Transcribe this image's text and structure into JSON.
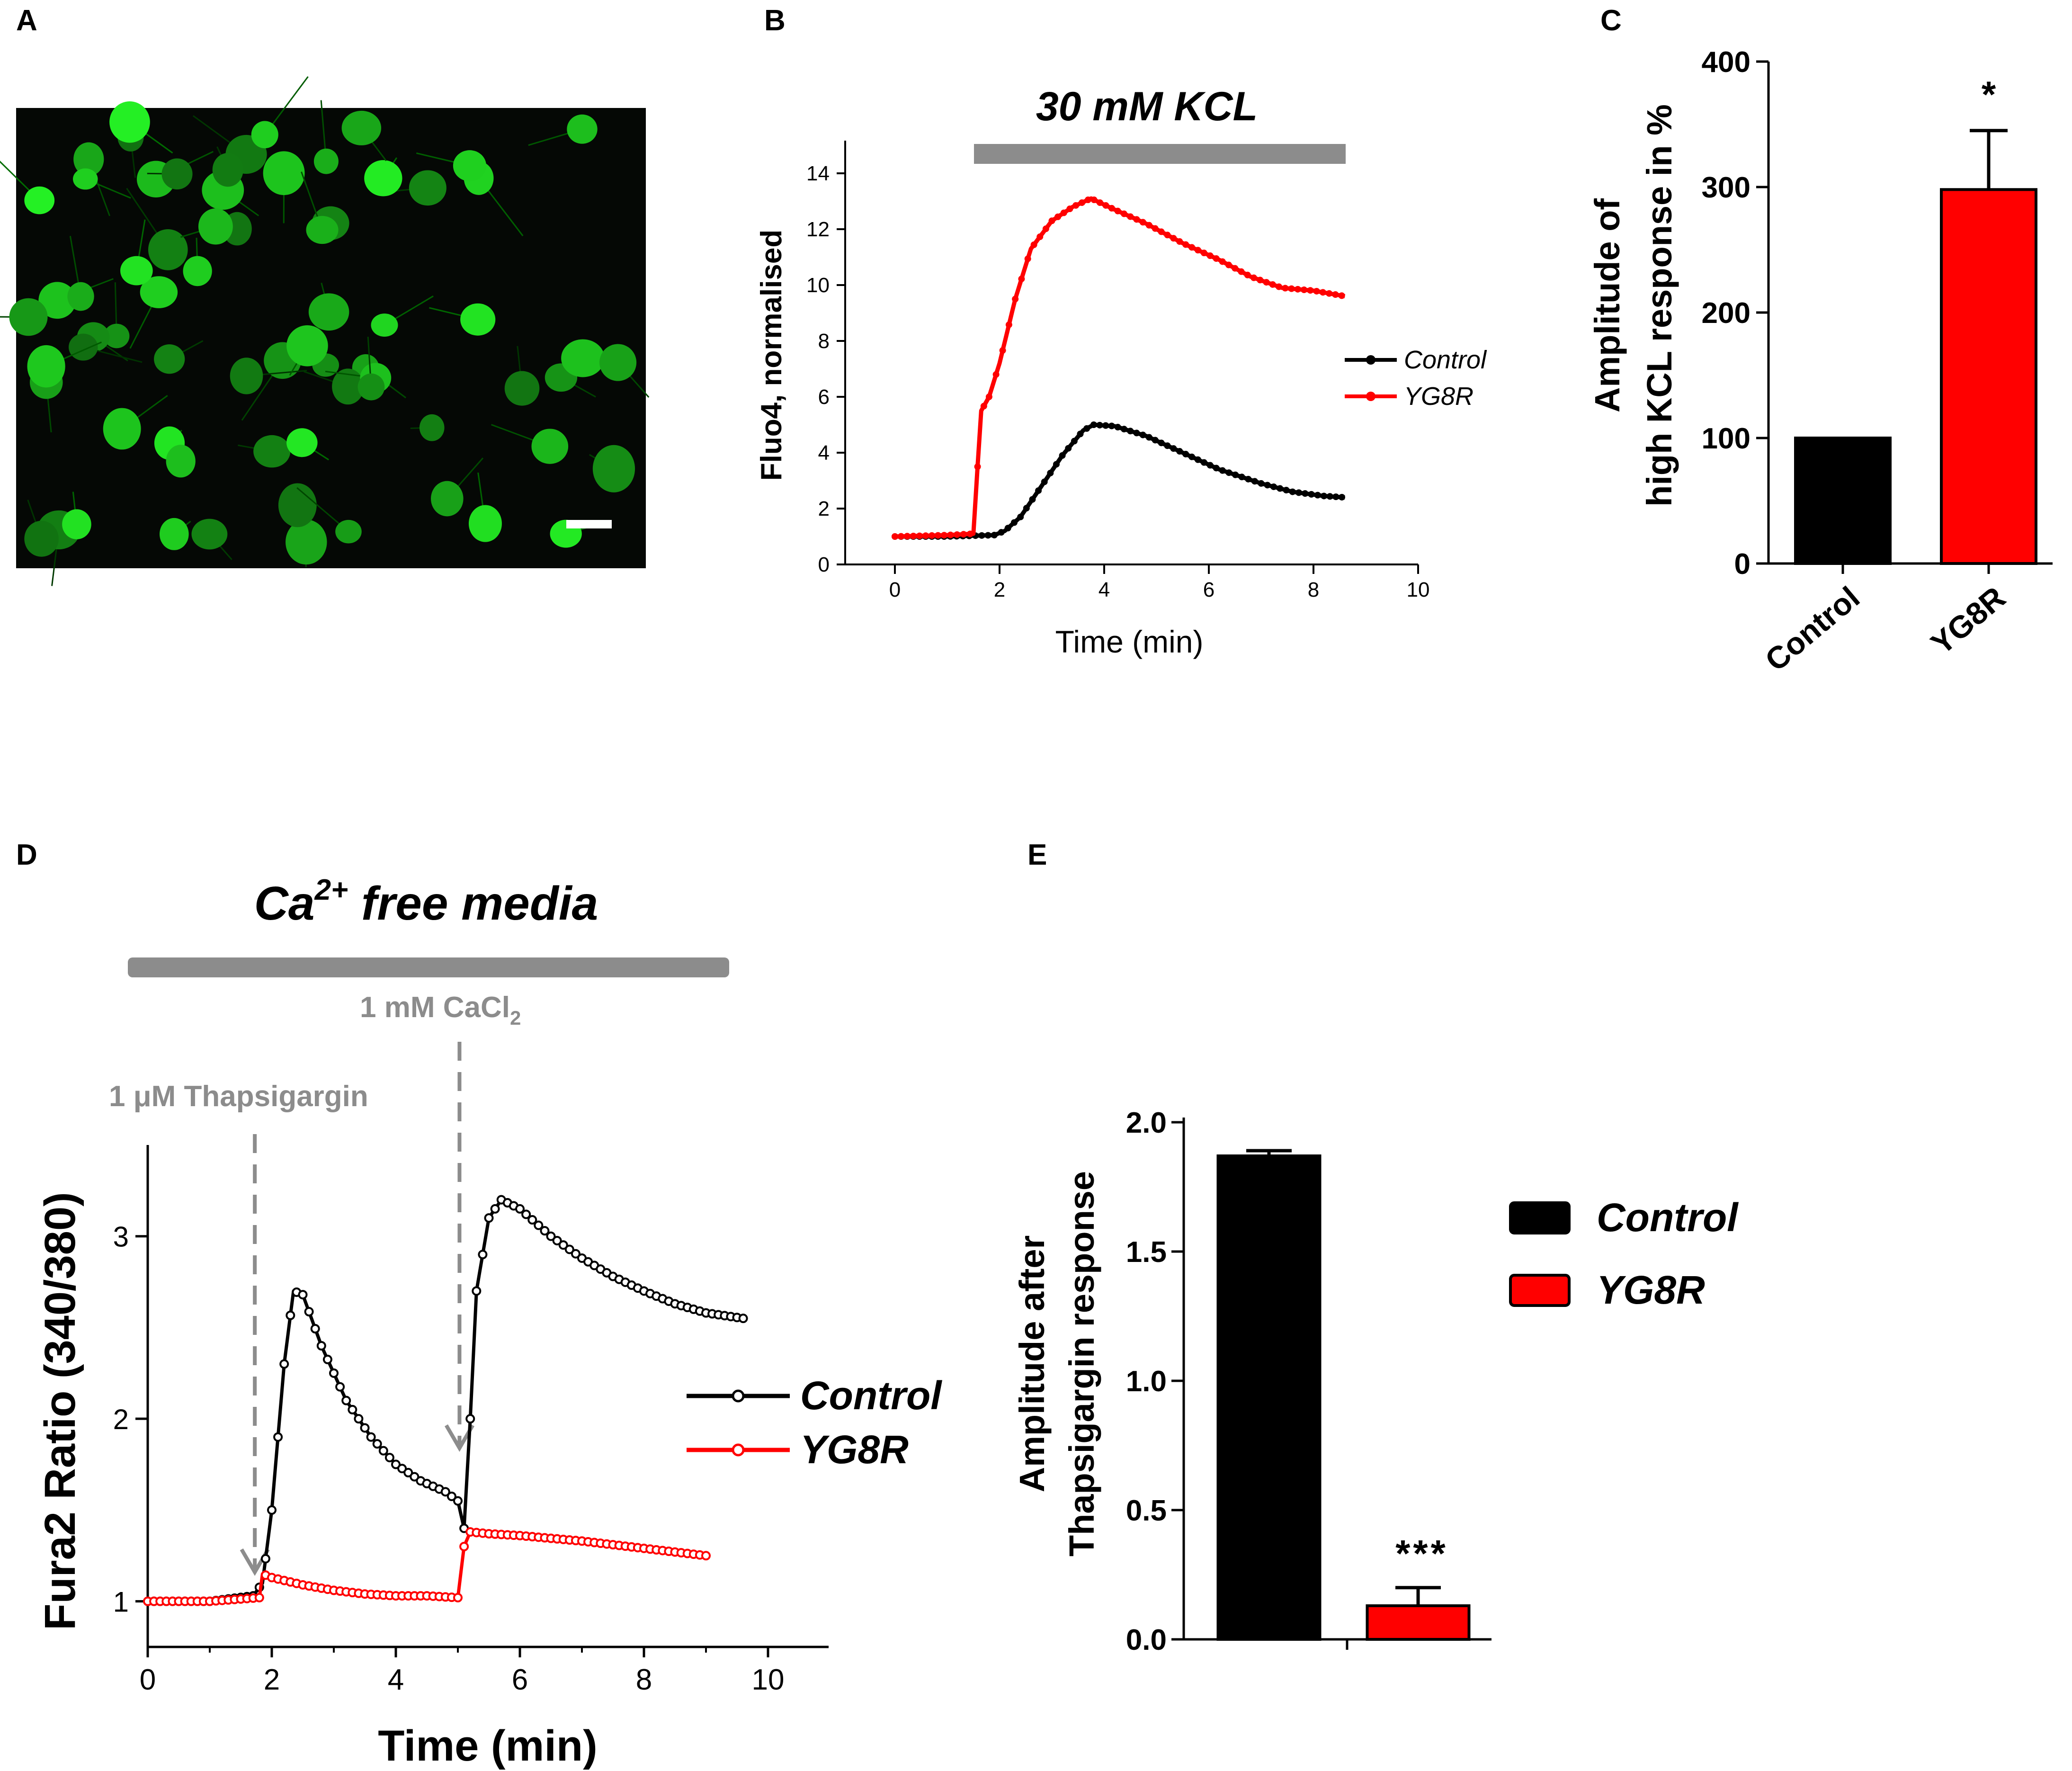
{
  "panels": {
    "A": "A",
    "B": "B",
    "C": "C",
    "D": "D",
    "E": "E"
  },
  "colors": {
    "control": "#000000",
    "yg8r": "#ff0000",
    "bar": "#8c8c8c",
    "annot": "#8c8c8c",
    "cells": "#22cc22"
  },
  "chart_data": [
    {
      "id": "A",
      "type": "image",
      "description_icon": "fluorescence-micrograph",
      "scale_bar": true
    },
    {
      "id": "B",
      "type": "line",
      "bar_label": "30 mM KCL",
      "xlabel": "Time (min)",
      "ylabel": "Fluo4, normalised",
      "xlim": [
        0,
        10
      ],
      "ylim": [
        0,
        15
      ],
      "xticks": [
        0,
        2,
        4,
        6,
        8,
        10
      ],
      "yticks": [
        0,
        2,
        4,
        6,
        8,
        10,
        12,
        14
      ],
      "legend_position": "right",
      "series": [
        {
          "name": "Control",
          "x": [
            0,
            1.0,
            1.9,
            2.1,
            2.4,
            2.8,
            3.2,
            3.6,
            3.8,
            4.2,
            4.8,
            5.5,
            6.2,
            7.0,
            7.6,
            8.2,
            8.6
          ],
          "y": [
            1.0,
            1.0,
            1.05,
            1.2,
            1.7,
            2.8,
            3.9,
            4.8,
            5.0,
            4.95,
            4.6,
            4.0,
            3.4,
            2.9,
            2.6,
            2.45,
            2.4
          ]
        },
        {
          "name": "YG8R",
          "x": [
            0,
            1.0,
            1.5,
            1.58,
            1.65,
            1.8,
            2.0,
            2.3,
            2.6,
            3.0,
            3.4,
            3.75,
            4.2,
            4.8,
            5.5,
            6.2,
            6.8,
            7.4,
            8.0,
            8.6
          ],
          "y": [
            1.0,
            1.05,
            1.1,
            3.5,
            5.5,
            6.0,
            7.2,
            9.5,
            11.3,
            12.3,
            12.8,
            13.1,
            12.7,
            12.2,
            11.5,
            10.9,
            10.3,
            9.9,
            9.8,
            9.6
          ]
        }
      ]
    },
    {
      "id": "C",
      "type": "bar",
      "ylabel_line1": "Amplitude of",
      "ylabel_line2": "high KCL response in %",
      "categories": [
        "Control",
        "YG8R"
      ],
      "values": [
        100,
        298
      ],
      "errors": [
        0,
        47
      ],
      "ylim": [
        0,
        400
      ],
      "yticks": [
        0,
        100,
        200,
        300,
        400
      ],
      "significance": [
        "",
        "*"
      ]
    },
    {
      "id": "D",
      "type": "line",
      "bar_label_main": "Ca",
      "bar_label_sup": "2+",
      "bar_label_rest": " free media",
      "annot_cacl2_main": "1 mM CaCl",
      "annot_cacl2_sub": "2",
      "annot_thapsigargin": "1 μM Thapsigargin",
      "xlabel": "Time (min)",
      "ylabel": "Fura2 Ratio (340/380)",
      "xlim": [
        0,
        11
      ],
      "ylim": [
        0.75,
        3.5
      ],
      "xticks": [
        0,
        2,
        4,
        6,
        8,
        10
      ],
      "yticks": [
        1,
        2,
        3
      ],
      "legend_position": "right",
      "events": [
        {
          "x": 1.65
        },
        {
          "x": 4.95
        }
      ],
      "series": [
        {
          "name": "Control",
          "x": [
            0,
            1.0,
            1.7,
            1.85,
            2.0,
            2.2,
            2.35,
            2.5,
            2.8,
            3.2,
            3.6,
            4.0,
            4.4,
            4.8,
            5.0,
            5.1,
            5.2,
            5.3,
            5.5,
            5.7,
            6.0,
            6.5,
            7.0,
            7.5,
            8.0,
            8.5,
            9.0,
            9.6
          ],
          "y": [
            1.0,
            1.0,
            1.03,
            1.1,
            1.5,
            2.3,
            2.7,
            2.68,
            2.4,
            2.1,
            1.9,
            1.75,
            1.66,
            1.6,
            1.55,
            1.4,
            2.0,
            2.7,
            3.1,
            3.2,
            3.15,
            3.0,
            2.88,
            2.78,
            2.7,
            2.63,
            2.58,
            2.55
          ]
        },
        {
          "name": "YG8R",
          "x": [
            0,
            1.0,
            1.8,
            1.85,
            2.0,
            2.5,
            3.0,
            3.5,
            4.0,
            4.5,
            5.0,
            5.1,
            5.2,
            5.5,
            6.0,
            7.0,
            8.0,
            9.0
          ],
          "y": [
            1.0,
            1.0,
            1.02,
            1.15,
            1.13,
            1.09,
            1.06,
            1.04,
            1.03,
            1.03,
            1.02,
            1.3,
            1.38,
            1.37,
            1.36,
            1.33,
            1.29,
            1.25
          ]
        }
      ]
    },
    {
      "id": "E",
      "type": "bar",
      "ylabel_line1": "Amplitude after",
      "ylabel_line2": "Thapsigargin response",
      "categories": [
        "Control",
        "YG8R"
      ],
      "values": [
        1.87,
        0.13
      ],
      "errors": [
        0.02,
        0.07
      ],
      "ylim": [
        0,
        2.0
      ],
      "yticks": [
        0.0,
        0.5,
        1.0,
        1.5,
        2.0
      ],
      "ytick_labels": [
        "0.0",
        "0.5",
        "1.0",
        "1.5",
        "2.0"
      ],
      "significance": [
        "",
        "***"
      ],
      "legend_position": "right",
      "legend": [
        "Control",
        "YG8R"
      ]
    }
  ]
}
